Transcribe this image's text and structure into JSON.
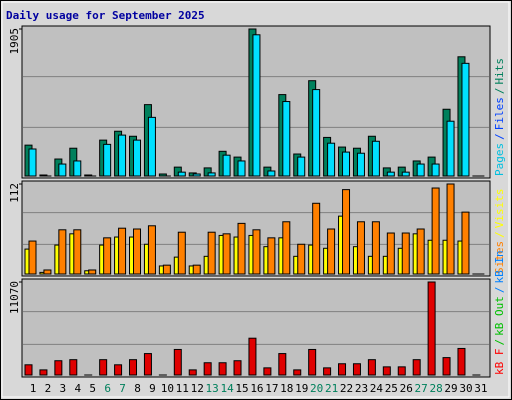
{
  "chart_data": [
    {
      "type": "bar",
      "title": "Daily usage for September 2025",
      "title_color": "#0000a0",
      "ylim": [
        0,
        1905
      ],
      "yticks": [
        1905
      ],
      "legend_separator": "/",
      "legend": [
        {
          "name": "Pages",
          "color": "#00c0e0"
        },
        {
          "name": "Files",
          "color": "#0040ff"
        },
        {
          "name": "Hits",
          "color": "#00805c"
        }
      ],
      "series": [
        {
          "name": "Hits",
          "color": "#00805c",
          "values": [
            400,
            13,
            220,
            360,
            13,
            465,
            580,
            515,
            925,
            26,
            115,
            40,
            105,
            320,
            245,
            1905,
            115,
            1055,
            285,
            1235,
            500,
            375,
            360,
            515,
            105,
            115,
            195,
            245,
            865,
            1545,
            0
          ]
        },
        {
          "name": "Pages",
          "color": "#00e0ff",
          "values": [
            350,
            0,
            155,
            195,
            0,
            410,
            530,
            465,
            760,
            0,
            50,
            26,
            40,
            270,
            195,
            1830,
            65,
            965,
            245,
            1120,
            425,
            310,
            295,
            450,
            50,
            50,
            155,
            155,
            710,
            1460,
            0
          ]
        }
      ]
    },
    {
      "type": "bar",
      "ylim": [
        0,
        112
      ],
      "yticks": [
        112
      ],
      "legend_separator": "/",
      "legend": [
        {
          "name": "Sites",
          "color": "#ff8000"
        },
        {
          "name": "Visits",
          "color": "#ffff00"
        }
      ],
      "series": [
        {
          "name": "Visits",
          "color": "#ffff00",
          "values": [
            31,
            2,
            36,
            50,
            4,
            36,
            46,
            46,
            37,
            10,
            21,
            10,
            22,
            48,
            46,
            48,
            34,
            45,
            22,
            36,
            32,
            72,
            34,
            22,
            22,
            32,
            50,
            42,
            42,
            41,
            0
          ]
        },
        {
          "name": "Sites",
          "color": "#ff8000",
          "values": [
            41,
            5,
            55,
            55,
            5,
            45,
            57,
            56,
            60,
            11,
            52,
            11,
            52,
            50,
            63,
            55,
            45,
            65,
            37,
            88,
            56,
            105,
            65,
            65,
            51,
            51,
            56,
            107,
            112,
            77,
            0
          ]
        }
      ]
    },
    {
      "type": "bar",
      "ylim": [
        0,
        11070
      ],
      "yticks": [
        11070
      ],
      "legend_separator": "/",
      "legend": [
        {
          "name": "kB F",
          "color": "#ff0000"
        },
        {
          "name": "kB Out",
          "color": "#00c000"
        },
        {
          "name": "kB In",
          "color": "#0080ff"
        }
      ],
      "series": [
        {
          "name": "kB F",
          "color": "#e00000",
          "values": [
            1215,
            610,
            1700,
            1825,
            0,
            1825,
            1215,
            1825,
            2550,
            0,
            3040,
            610,
            1460,
            1460,
            1700,
            4380,
            850,
            2550,
            610,
            3040,
            850,
            1340,
            1340,
            1825,
            970,
            970,
            1825,
            11070,
            2070,
            3160,
            0
          ]
        }
      ],
      "categories": [
        "1",
        "2",
        "3",
        "4",
        "5",
        "6",
        "7",
        "8",
        "9",
        "10",
        "11",
        "12",
        "13",
        "14",
        "15",
        "16",
        "17",
        "18",
        "19",
        "20",
        "21",
        "22",
        "23",
        "24",
        "25",
        "26",
        "27",
        "28",
        "29",
        "30",
        "31"
      ],
      "category_colors": [
        "#000",
        "#000",
        "#000",
        "#000",
        "#000",
        "#00805c",
        "#00805c",
        "#000",
        "#000",
        "#000",
        "#000",
        "#000",
        "#00805c",
        "#00805c",
        "#000",
        "#000",
        "#000",
        "#000",
        "#000",
        "#00805c",
        "#00805c",
        "#000",
        "#000",
        "#000",
        "#000",
        "#000",
        "#00805c",
        "#00805c",
        "#000",
        "#000",
        "#000"
      ]
    }
  ]
}
